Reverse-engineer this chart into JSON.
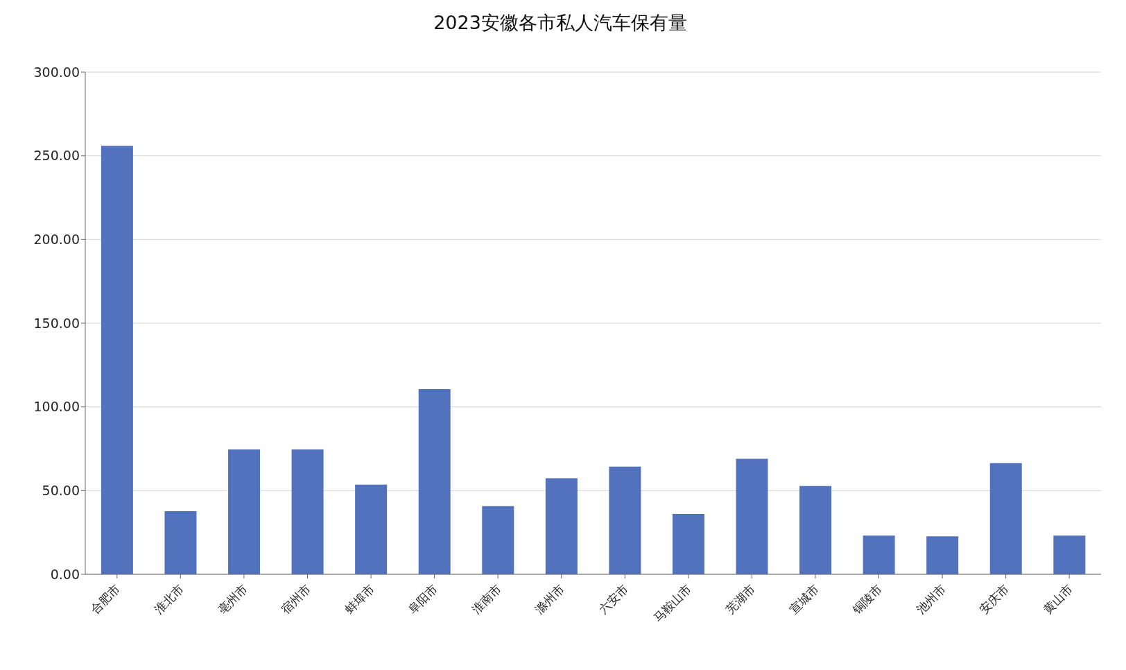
{
  "chart_data": {
    "type": "bar",
    "title": "2023安徽各市私人汽车保有量",
    "categories": [
      "合肥市",
      "淮北市",
      "亳州市",
      "宿州市",
      "蚌埠市",
      "阜阳市",
      "淮南市",
      "滁州市",
      "六安市",
      "马鞍山市",
      "芜湖市",
      "宣城市",
      "铜陵市",
      "池州市",
      "安庆市",
      "黄山市"
    ],
    "values": [
      256,
      37.7,
      74.6,
      74.6,
      53.6,
      110.6,
      40.7,
      57.4,
      64.3,
      36,
      69,
      52.7,
      23.1,
      22.7,
      66.4,
      23.1
    ],
    "color": "#5372bd",
    "ylim": [
      0,
      300
    ],
    "yticks": [
      {
        "value": 0,
        "label": "0.00"
      },
      {
        "value": 50,
        "label": "50.00"
      },
      {
        "value": 100,
        "label": "100.00"
      },
      {
        "value": 150,
        "label": "150.00"
      },
      {
        "value": 200,
        "label": "200.00"
      },
      {
        "value": 250,
        "label": "250.00"
      },
      {
        "value": 300,
        "label": "300.00"
      }
    ],
    "grid": "y"
  }
}
